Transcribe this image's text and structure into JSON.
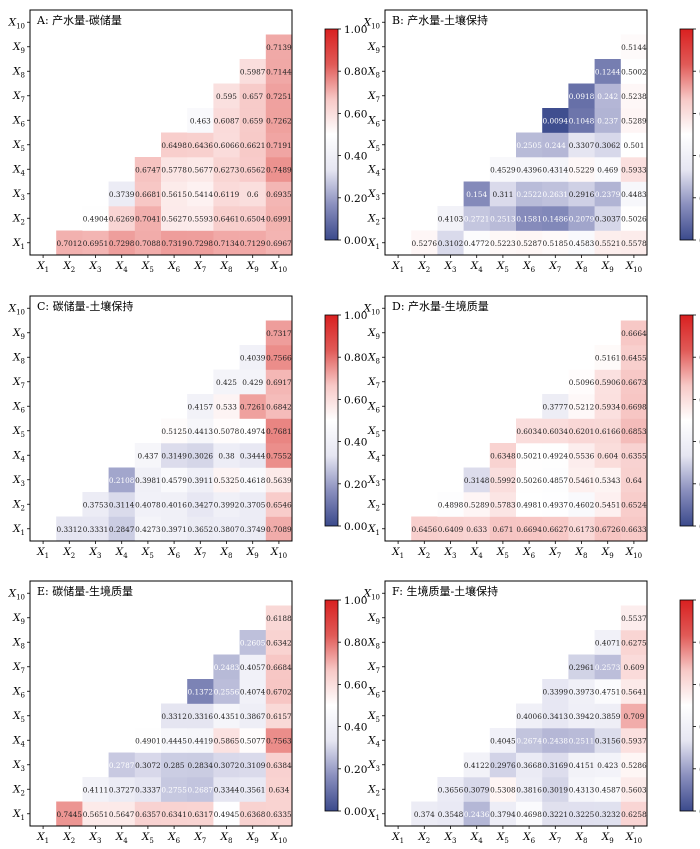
{
  "colorbar": {
    "ticks": [
      "0.00",
      "0.20",
      "0.40",
      "0.60",
      "0.80",
      "1.00"
    ],
    "stops": [
      "#3b4a8c",
      "#8a8fbe",
      "#e6e6f2",
      "#ffffff",
      "#f7c8c6",
      "#e05a57",
      "#d92020"
    ]
  },
  "axis_labels": [
    "X1",
    "X2",
    "X3",
    "X4",
    "X5",
    "X6",
    "X7",
    "X8",
    "X9",
    "X10"
  ],
  "chart_data": [
    {
      "type": "heatmap",
      "title": "A: 产水量-碳储量",
      "zlim": [
        0,
        1
      ],
      "cells": [
        [
          1,
          0,
          0.7012
        ],
        [
          2,
          0,
          0.6951
        ],
        [
          3,
          0,
          0.7298
        ],
        [
          4,
          0,
          0.7088
        ],
        [
          5,
          0,
          0.7319
        ],
        [
          6,
          0,
          0.7298
        ],
        [
          7,
          0,
          0.7134
        ],
        [
          8,
          0,
          0.7129
        ],
        [
          9,
          0,
          0.6967
        ],
        [
          2,
          1,
          0.4904
        ],
        [
          3,
          1,
          0.6269
        ],
        [
          4,
          1,
          0.7041
        ],
        [
          5,
          1,
          0.5627
        ],
        [
          6,
          1,
          0.5593
        ],
        [
          7,
          1,
          0.6461
        ],
        [
          8,
          1,
          0.6504
        ],
        [
          9,
          1,
          0.6991
        ],
        [
          3,
          2,
          0.3739
        ],
        [
          4,
          2,
          0.6681
        ],
        [
          5,
          2,
          0.5615
        ],
        [
          6,
          2,
          0.5414
        ],
        [
          7,
          2,
          0.6119
        ],
        [
          8,
          2,
          0.6
        ],
        [
          9,
          2,
          0.6935
        ],
        [
          4,
          3,
          0.6747
        ],
        [
          5,
          3,
          0.5778
        ],
        [
          6,
          3,
          0.5677
        ],
        [
          7,
          3,
          0.6273
        ],
        [
          8,
          3,
          0.6562
        ],
        [
          9,
          3,
          0.7489
        ],
        [
          5,
          4,
          0.6498
        ],
        [
          6,
          4,
          0.6436
        ],
        [
          7,
          4,
          0.6066
        ],
        [
          8,
          4,
          0.6621
        ],
        [
          9,
          4,
          0.7191
        ],
        [
          6,
          5,
          0.463
        ],
        [
          7,
          5,
          0.6087
        ],
        [
          8,
          5,
          0.659
        ],
        [
          9,
          5,
          0.7262
        ],
        [
          7,
          6,
          0.595
        ],
        [
          8,
          6,
          0.657
        ],
        [
          9,
          6,
          0.7251
        ],
        [
          8,
          7,
          0.5987
        ],
        [
          9,
          7,
          0.7144
        ],
        [
          9,
          8,
          0.7139
        ]
      ]
    },
    {
      "type": "heatmap",
      "title": "B: 产水量-土壤保持",
      "zlim": [
        0,
        1
      ],
      "cells": [
        [
          1,
          0,
          0.5276
        ],
        [
          2,
          0,
          0.3102
        ],
        [
          3,
          0,
          0.4772
        ],
        [
          4,
          0,
          0.5223
        ],
        [
          5,
          0,
          0.5287
        ],
        [
          6,
          0,
          0.5185
        ],
        [
          7,
          0,
          0.4583
        ],
        [
          8,
          0,
          0.5521
        ],
        [
          9,
          0,
          0.5578
        ],
        [
          2,
          1,
          0.4103
        ],
        [
          3,
          1,
          0.2721
        ],
        [
          4,
          1,
          0.2513
        ],
        [
          5,
          1,
          0.1581
        ],
        [
          6,
          1,
          0.1486
        ],
        [
          7,
          1,
          0.2079
        ],
        [
          8,
          1,
          0.3037
        ],
        [
          9,
          1,
          0.5026
        ],
        [
          3,
          2,
          0.154
        ],
        [
          4,
          2,
          0.311
        ],
        [
          5,
          2,
          0.2522
        ],
        [
          6,
          2,
          0.2631
        ],
        [
          7,
          2,
          0.2916
        ],
        [
          8,
          2,
          0.2379
        ],
        [
          9,
          2,
          0.4483
        ],
        [
          4,
          3,
          0.4529
        ],
        [
          5,
          3,
          0.4396
        ],
        [
          6,
          3,
          0.4314
        ],
        [
          7,
          3,
          0.5229
        ],
        [
          8,
          3,
          0.469
        ],
        [
          9,
          3,
          0.5933
        ],
        [
          5,
          4,
          0.2505
        ],
        [
          6,
          4,
          0.244
        ],
        [
          7,
          4,
          0.3307
        ],
        [
          8,
          4,
          0.3062
        ],
        [
          9,
          4,
          0.501
        ],
        [
          6,
          5,
          0.0094
        ],
        [
          7,
          5,
          0.1048
        ],
        [
          8,
          5,
          0.237
        ],
        [
          9,
          5,
          0.5289
        ],
        [
          7,
          6,
          0.0918
        ],
        [
          8,
          6,
          0.242
        ],
        [
          9,
          6,
          0.5238
        ],
        [
          8,
          7,
          0.1244
        ],
        [
          9,
          7,
          0.5002
        ],
        [
          9,
          8,
          0.5144
        ]
      ]
    },
    {
      "type": "heatmap",
      "title": "C: 碳储量-土壤保持",
      "zlim": [
        0,
        1
      ],
      "cells": [
        [
          1,
          0,
          0.3312
        ],
        [
          2,
          0,
          0.3331
        ],
        [
          3,
          0,
          0.2847
        ],
        [
          4,
          0,
          0.4273
        ],
        [
          5,
          0,
          0.3971
        ],
        [
          6,
          0,
          0.3652
        ],
        [
          7,
          0,
          0.3807
        ],
        [
          8,
          0,
          0.3749
        ],
        [
          9,
          0,
          0.7089
        ],
        [
          2,
          1,
          0.3753
        ],
        [
          3,
          1,
          0.3114
        ],
        [
          4,
          1,
          0.4078
        ],
        [
          5,
          1,
          0.4016
        ],
        [
          6,
          1,
          0.3427
        ],
        [
          7,
          1,
          0.3992
        ],
        [
          8,
          1,
          0.3705
        ],
        [
          9,
          1,
          0.6546
        ],
        [
          3,
          2,
          0.2108
        ],
        [
          4,
          2,
          0.3981
        ],
        [
          5,
          2,
          0.4579
        ],
        [
          6,
          2,
          0.3911
        ],
        [
          7,
          2,
          0.5325
        ],
        [
          8,
          2,
          0.4618
        ],
        [
          9,
          2,
          0.5639
        ],
        [
          4,
          3,
          0.437
        ],
        [
          5,
          3,
          0.3149
        ],
        [
          6,
          3,
          0.3026
        ],
        [
          7,
          3,
          0.38
        ],
        [
          8,
          3,
          0.3444
        ],
        [
          9,
          3,
          0.7552
        ],
        [
          5,
          4,
          0.5125
        ],
        [
          6,
          4,
          0.4413
        ],
        [
          7,
          4,
          0.5078
        ],
        [
          8,
          4,
          0.4974
        ],
        [
          9,
          4,
          0.7681
        ],
        [
          6,
          5,
          0.4157
        ],
        [
          7,
          5,
          0.533
        ],
        [
          8,
          5,
          0.7261
        ],
        [
          9,
          5,
          0.6842
        ],
        [
          7,
          6,
          0.425
        ],
        [
          8,
          6,
          0.429
        ],
        [
          9,
          6,
          0.6917
        ],
        [
          8,
          7,
          0.4039
        ],
        [
          9,
          7,
          0.7566
        ],
        [
          9,
          8,
          0.7317
        ]
      ]
    },
    {
      "type": "heatmap",
      "title": "D: 产水量-生境质量",
      "zlim": [
        0,
        1
      ],
      "cells": [
        [
          1,
          0,
          0.6456
        ],
        [
          2,
          0,
          0.6409
        ],
        [
          3,
          0,
          0.633
        ],
        [
          4,
          0,
          0.671
        ],
        [
          5,
          0,
          0.6694
        ],
        [
          6,
          0,
          0.6627
        ],
        [
          7,
          0,
          0.6173
        ],
        [
          8,
          0,
          0.6726
        ],
        [
          9,
          0,
          0.6633
        ],
        [
          2,
          1,
          0.4898
        ],
        [
          3,
          1,
          0.5289
        ],
        [
          4,
          1,
          0.5783
        ],
        [
          5,
          1,
          0.4981
        ],
        [
          6,
          1,
          0.4937
        ],
        [
          7,
          1,
          0.4602
        ],
        [
          8,
          1,
          0.5451
        ],
        [
          9,
          1,
          0.6524
        ],
        [
          3,
          2,
          0.3148
        ],
        [
          4,
          2,
          0.5992
        ],
        [
          5,
          2,
          0.5026
        ],
        [
          6,
          2,
          0.4857
        ],
        [
          7,
          2,
          0.5461
        ],
        [
          8,
          2,
          0.5343
        ],
        [
          9,
          2,
          0.64
        ],
        [
          4,
          3,
          0.6348
        ],
        [
          5,
          3,
          0.5021
        ],
        [
          6,
          3,
          0.4924
        ],
        [
          7,
          3,
          0.5536
        ],
        [
          8,
          3,
          0.604
        ],
        [
          9,
          3,
          0.6355
        ],
        [
          5,
          4,
          0.6034
        ],
        [
          6,
          4,
          0.6034
        ],
        [
          7,
          4,
          0.6201
        ],
        [
          8,
          4,
          0.6166
        ],
        [
          9,
          4,
          0.6853
        ],
        [
          6,
          5,
          0.3777
        ],
        [
          7,
          5,
          0.5212
        ],
        [
          8,
          5,
          0.5934
        ],
        [
          9,
          5,
          0.6698
        ],
        [
          7,
          6,
          0.5096
        ],
        [
          8,
          6,
          0.5906
        ],
        [
          9,
          6,
          0.6673
        ],
        [
          8,
          7,
          0.5161
        ],
        [
          9,
          7,
          0.6455
        ],
        [
          9,
          8,
          0.6664
        ]
      ]
    },
    {
      "type": "heatmap",
      "title": "E: 碳储量-生境质量",
      "zlim": [
        0,
        1
      ],
      "cells": [
        [
          1,
          0,
          0.7445
        ],
        [
          2,
          0,
          0.5651
        ],
        [
          3,
          0,
          0.5647
        ],
        [
          4,
          0,
          0.6357
        ],
        [
          5,
          0,
          0.6341
        ],
        [
          6,
          0,
          0.6317
        ],
        [
          7,
          0,
          0.4945
        ],
        [
          8,
          0,
          0.6368
        ],
        [
          9,
          0,
          0.6335
        ],
        [
          2,
          1,
          0.4111
        ],
        [
          3,
          1,
          0.3727
        ],
        [
          4,
          1,
          0.3337
        ],
        [
          5,
          1,
          0.2755
        ],
        [
          6,
          1,
          0.2687
        ],
        [
          7,
          1,
          0.3344
        ],
        [
          8,
          1,
          0.3561
        ],
        [
          9,
          1,
          0.634
        ],
        [
          3,
          2,
          0.2787
        ],
        [
          4,
          2,
          0.3072
        ],
        [
          5,
          2,
          0.285
        ],
        [
          6,
          2,
          0.2834
        ],
        [
          7,
          2,
          0.3072
        ],
        [
          8,
          2,
          0.3109
        ],
        [
          9,
          2,
          0.6384
        ],
        [
          4,
          3,
          0.4901
        ],
        [
          5,
          3,
          0.4445
        ],
        [
          6,
          3,
          0.4419
        ],
        [
          7,
          3,
          0.5865
        ],
        [
          8,
          3,
          0.5077
        ],
        [
          9,
          3,
          0.7563
        ],
        [
          5,
          4,
          0.3312
        ],
        [
          6,
          4,
          0.3316
        ],
        [
          7,
          4,
          0.4351
        ],
        [
          8,
          4,
          0.3867
        ],
        [
          9,
          4,
          0.6157
        ],
        [
          6,
          5,
          0.1372
        ],
        [
          7,
          5,
          0.2556
        ],
        [
          8,
          5,
          0.4074
        ],
        [
          9,
          5,
          0.6702
        ],
        [
          7,
          6,
          0.2483
        ],
        [
          8,
          6,
          0.4057
        ],
        [
          9,
          6,
          0.6684
        ],
        [
          8,
          7,
          0.2605
        ],
        [
          9,
          7,
          0.6342
        ],
        [
          9,
          8,
          0.6188
        ]
      ]
    },
    {
      "type": "heatmap",
      "title": "F: 生境质量-土壤保持",
      "zlim": [
        0,
        1
      ],
      "cells": [
        [
          1,
          0,
          0.374
        ],
        [
          2,
          0,
          0.3548
        ],
        [
          3,
          0,
          0.2436
        ],
        [
          4,
          0,
          0.3794
        ],
        [
          5,
          0,
          0.4698
        ],
        [
          6,
          0,
          0.3221
        ],
        [
          7,
          0,
          0.3225
        ],
        [
          8,
          0,
          0.3232
        ],
        [
          9,
          0,
          0.6258
        ],
        [
          2,
          1,
          0.3656
        ],
        [
          3,
          1,
          0.3079
        ],
        [
          4,
          1,
          0.5308
        ],
        [
          5,
          1,
          0.3816
        ],
        [
          6,
          1,
          0.3019
        ],
        [
          7,
          1,
          0.4313
        ],
        [
          8,
          1,
          0.4587
        ],
        [
          9,
          1,
          0.5603
        ],
        [
          3,
          2,
          0.4122
        ],
        [
          4,
          2,
          0.2976
        ],
        [
          5,
          2,
          0.3668
        ],
        [
          6,
          2,
          0.3169
        ],
        [
          7,
          2,
          0.4151
        ],
        [
          8,
          2,
          0.423
        ],
        [
          9,
          2,
          0.5286
        ],
        [
          4,
          3,
          0.4045
        ],
        [
          5,
          3,
          0.2674
        ],
        [
          6,
          3,
          0.2438
        ],
        [
          7,
          3,
          0.2511
        ],
        [
          8,
          3,
          0.3156
        ],
        [
          9,
          3,
          0.5937
        ],
        [
          5,
          4,
          0.4006
        ],
        [
          6,
          4,
          0.3413
        ],
        [
          7,
          4,
          0.3942
        ],
        [
          8,
          4,
          0.3859
        ],
        [
          9,
          4,
          0.709
        ],
        [
          6,
          5,
          0.3399
        ],
        [
          7,
          5,
          0.3973
        ],
        [
          8,
          5,
          0.4751
        ],
        [
          9,
          5,
          0.5641
        ],
        [
          7,
          6,
          0.2961
        ],
        [
          8,
          6,
          0.2573
        ],
        [
          9,
          6,
          0.609
        ],
        [
          8,
          7,
          0.4071
        ],
        [
          9,
          7,
          0.6275
        ],
        [
          9,
          8,
          0.5537
        ]
      ]
    }
  ]
}
